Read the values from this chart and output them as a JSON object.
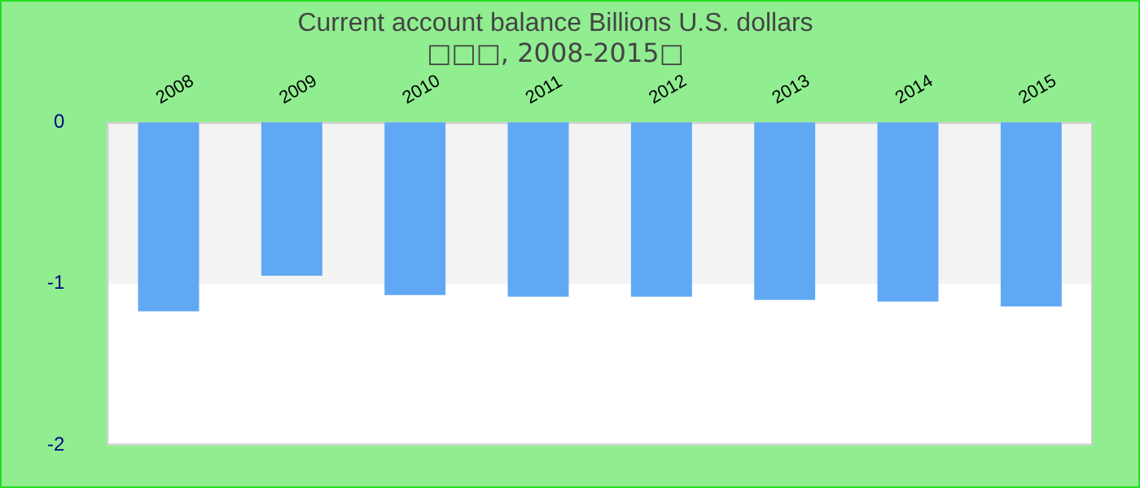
{
  "chart_data": {
    "type": "bar",
    "title": "Current account balance Billions U.S. dollars",
    "subtitle": "□□□, 2008-2015□",
    "categories": [
      "2008",
      "2009",
      "2010",
      "2011",
      "2012",
      "2013",
      "2014",
      "2015"
    ],
    "values": [
      -1.17,
      -0.95,
      -1.07,
      -1.08,
      -1.08,
      -1.1,
      -1.11,
      -1.14
    ],
    "color": "#60a8f4",
    "ylim": [
      -2,
      0
    ],
    "yticks": [
      -2,
      -1,
      0
    ],
    "bands": [
      {
        "axis": "y",
        "from": -1,
        "to": 0,
        "color": "#f3f3f3"
      }
    ],
    "legend": false
  }
}
